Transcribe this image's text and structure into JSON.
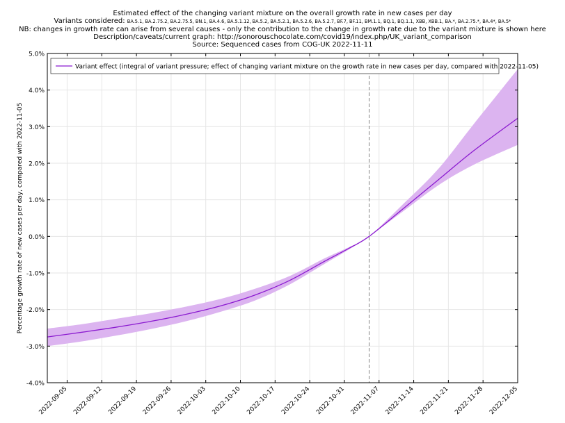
{
  "header": {
    "title": "Estimated effect of the changing variant mixture on the overall growth rate in new cases per day",
    "variants_prefix": "Variants considered:",
    "variants_list": "BA.5.1, BA.2.75.2, BA.2.75.5, BN.1, BA.4.6, BA.5.1.12, BA.5.2, BA.5.2.1, BA.5.2.6, BA.5.2.7, BF.7, BF.11, BM.1.1, BQ.1, BQ.1.1, XBB, XBB.1, BA.*, BA.2.75.*, BA.4*, BA.5*",
    "note": "NB: changes in growth rate can arise from several causes - only the contribution to the change in growth rate due to the variant mixture is shown here",
    "description": "Description/caveats/current graph: http://sonorouschocolate.com/covid19/index.php/UK_variant_comparison",
    "source": "Source: Sequenced cases from COG-UK 2022-11-11"
  },
  "chart_data": {
    "type": "line",
    "ylabel": "Percentage growth rate of new cases per day, compared with 2022-11-05",
    "xlabel": "",
    "ylim": [
      -4.0,
      5.0
    ],
    "y_ticks": [
      -4.0,
      -3.0,
      -2.0,
      -1.0,
      0.0,
      1.0,
      2.0,
      3.0,
      4.0,
      5.0
    ],
    "y_tick_labels": [
      "-4.0%",
      "-3.0%",
      "-2.0%",
      "-1.0%",
      "0.0%",
      "1.0%",
      "2.0%",
      "3.0%",
      "4.0%",
      "5.0%"
    ],
    "xlim": [
      "2022-09-01",
      "2022-12-05"
    ],
    "x_tick_labels": [
      "2022-09-05",
      "2022-09-12",
      "2022-09-19",
      "2022-09-26",
      "2022-10-03",
      "2022-10-10",
      "2022-10-17",
      "2022-10-24",
      "2022-10-31",
      "2022-11-07",
      "2022-11-14",
      "2022-11-21",
      "2022-11-28",
      "2022-12-05"
    ],
    "grid": true,
    "legend_position": "top-left",
    "reference_line": {
      "date": "2022-11-05",
      "style": "dashed"
    },
    "series": [
      {
        "name": "Variant effect (integral of variant pressure; effect of changing variant mixture on the growth rate in new cases per day, compared with 2022-11-05)",
        "color": "#8b1ad0",
        "band_color": "#dcb4f0",
        "x": [
          "2022-09-01",
          "2022-09-08",
          "2022-09-15",
          "2022-09-22",
          "2022-09-29",
          "2022-10-06",
          "2022-10-13",
          "2022-10-20",
          "2022-10-27",
          "2022-11-01",
          "2022-11-05",
          "2022-11-12",
          "2022-11-19",
          "2022-11-26",
          "2022-12-05"
        ],
        "y": [
          -2.75,
          -2.62,
          -2.48,
          -2.32,
          -2.13,
          -1.9,
          -1.6,
          -1.2,
          -0.68,
          -0.32,
          0.0,
          0.77,
          1.55,
          2.33,
          3.23
        ],
        "lower": [
          -3.0,
          -2.87,
          -2.71,
          -2.53,
          -2.32,
          -2.06,
          -1.75,
          -1.31,
          -0.75,
          -0.35,
          0.0,
          0.7,
          1.4,
          1.95,
          2.5
        ],
        "upper": [
          -2.52,
          -2.4,
          -2.25,
          -2.1,
          -1.92,
          -1.71,
          -1.43,
          -1.08,
          -0.6,
          -0.29,
          0.0,
          0.9,
          1.85,
          3.05,
          4.57
        ]
      }
    ]
  }
}
